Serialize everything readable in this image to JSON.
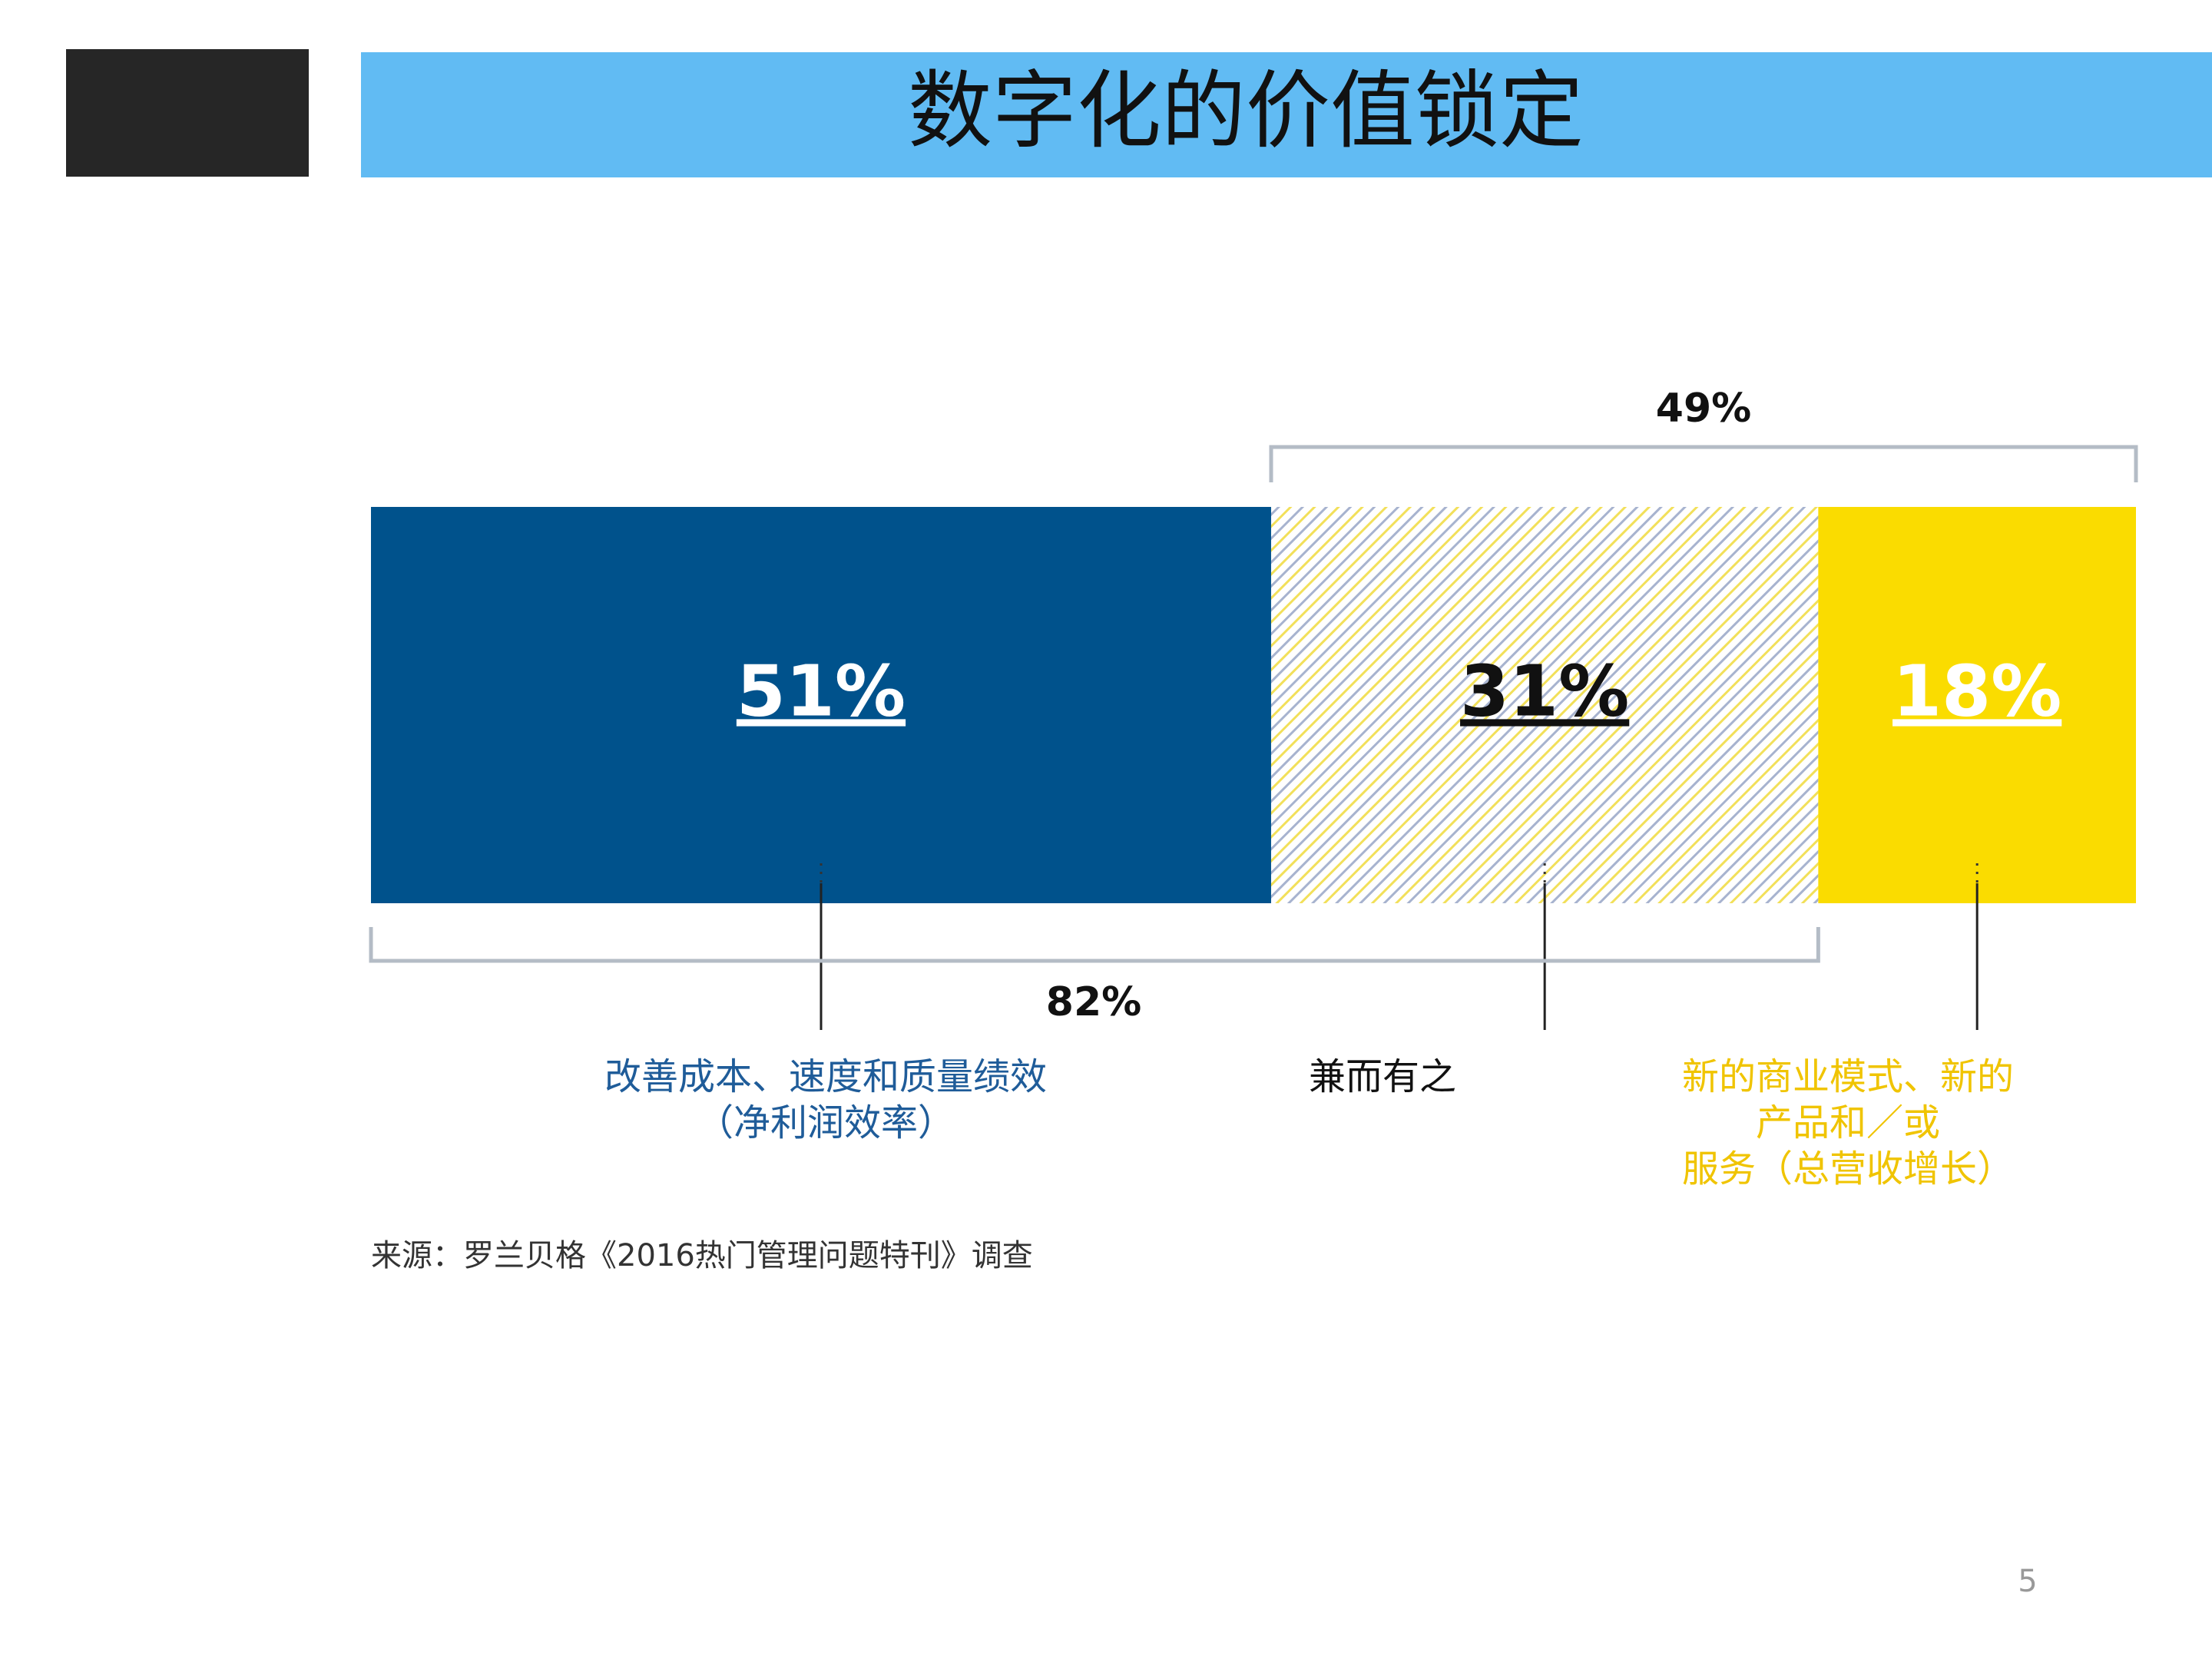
{
  "header": {
    "title": "数字化的价值锁定"
  },
  "chart_data": {
    "type": "stacked-bar",
    "xlim": [
      0,
      100
    ],
    "series": [
      {
        "name": "改善成本、速度和质量绩效\n（净利润效率）",
        "color": "#00528c",
        "values": [
          51
        ],
        "value_labels": [
          "51%"
        ]
      },
      {
        "name": "兼而有之",
        "color": "#a7b3cf",
        "pattern": "hatch",
        "values": [
          31
        ],
        "value_labels": [
          "31%"
        ]
      },
      {
        "name": "新的商业模式、新的产品和／或\n服务（总营收增长）",
        "color": "#fadc00",
        "values": [
          18
        ],
        "value_labels": [
          "18%"
        ]
      }
    ],
    "brackets": [
      {
        "value": 49,
        "label": "49%"
      },
      {
        "value": 82,
        "label": "82%"
      }
    ]
  },
  "source": "来源：罗兰贝格《2016热门管理问题特刊》调查",
  "page_number": 5
}
